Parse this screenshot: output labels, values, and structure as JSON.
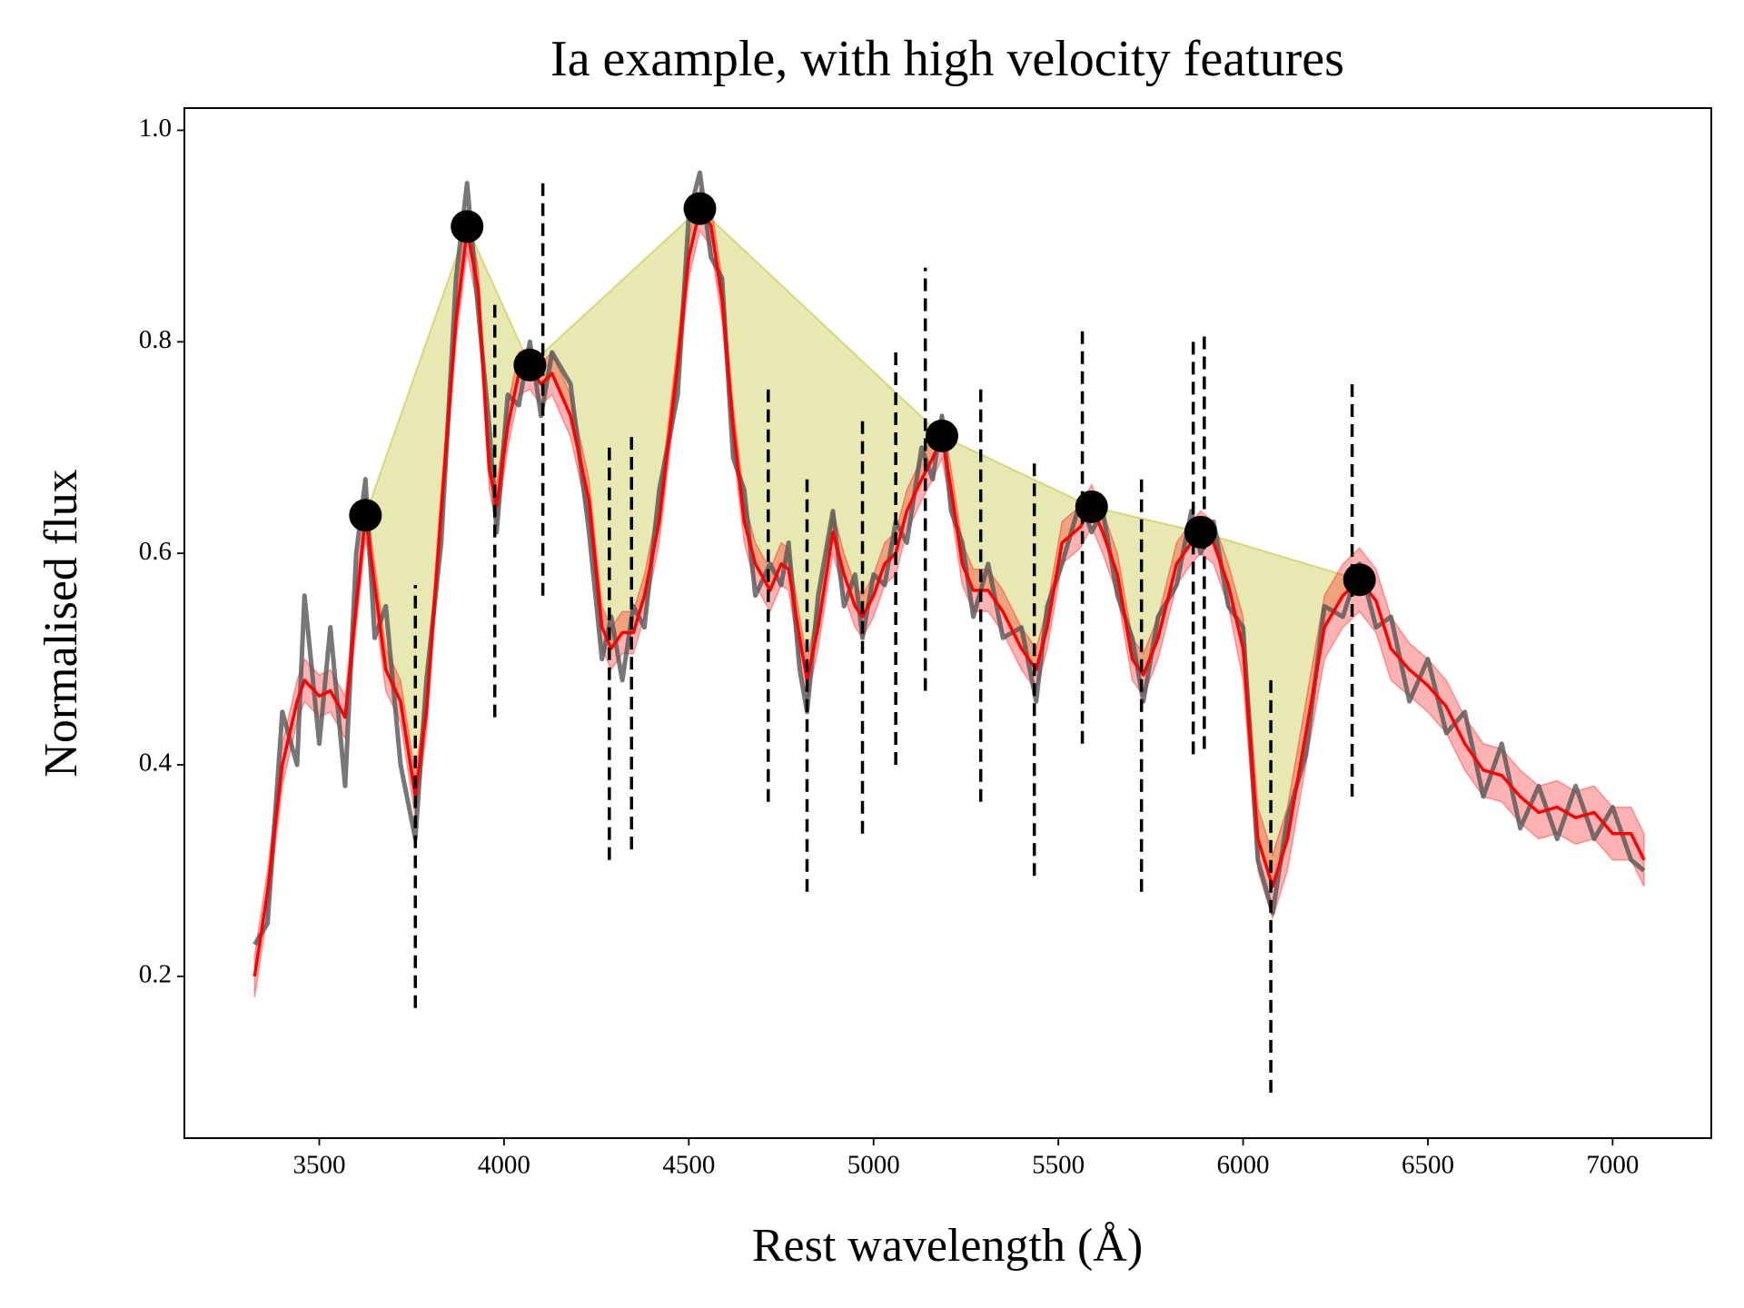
{
  "chart_data": {
    "type": "spectrum",
    "title": "Ia example, with high velocity features",
    "xlabel": "Rest wavelength (Å)",
    "ylabel": "Normalised flux",
    "xlim": [
      3135,
      7267
    ],
    "ylim": [
      0.047,
      1.021
    ],
    "xticks": [
      3500,
      4000,
      4500,
      5000,
      5500,
      6000,
      6500,
      7000
    ],
    "yticks": [
      0.2,
      0.4,
      0.6,
      0.8,
      {
        "value": 1,
        "label": "1.0"
      }
    ],
    "x": [
      3325,
      3360,
      3400,
      3440,
      3460,
      3500,
      3530,
      3570,
      3600,
      3625,
      3650,
      3680,
      3720,
      3760,
      3790,
      3830,
      3870,
      3900,
      3930,
      3960,
      3980,
      4010,
      4040,
      4070,
      4100,
      4130,
      4180,
      4230,
      4265,
      4290,
      4320,
      4350,
      4380,
      4420,
      4470,
      4500,
      4530,
      4560,
      4590,
      4620,
      4650,
      4680,
      4720,
      4750,
      4770,
      4800,
      4820,
      4850,
      4890,
      4920,
      4950,
      4970,
      5000,
      5030,
      5060,
      5090,
      5130,
      5160,
      5185,
      5210,
      5240,
      5270,
      5310,
      5350,
      5400,
      5440,
      5470,
      5510,
      5560,
      5590,
      5620,
      5660,
      5700,
      5730,
      5770,
      5820,
      5860,
      5885,
      5920,
      5960,
      6000,
      6040,
      6080,
      6120,
      6170,
      6220,
      6270,
      6315,
      6360,
      6400,
      6450,
      6500,
      6550,
      6600,
      6650,
      6700,
      6750,
      6800,
      6850,
      6900,
      6950,
      7000,
      7050,
      7085
    ],
    "series": [
      {
        "color": "#555555",
        "values": [
          0.23,
          0.25,
          0.45,
          0.4,
          0.56,
          0.42,
          0.53,
          0.38,
          0.6,
          0.67,
          0.52,
          0.55,
          0.4,
          0.33,
          0.48,
          0.61,
          0.86,
          0.95,
          0.83,
          0.72,
          0.62,
          0.75,
          0.74,
          0.8,
          0.73,
          0.79,
          0.76,
          0.62,
          0.5,
          0.54,
          0.48,
          0.55,
          0.53,
          0.66,
          0.75,
          0.92,
          0.96,
          0.88,
          0.86,
          0.69,
          0.66,
          0.56,
          0.59,
          0.57,
          0.61,
          0.49,
          0.45,
          0.56,
          0.64,
          0.55,
          0.58,
          0.52,
          0.58,
          0.57,
          0.63,
          0.61,
          0.7,
          0.67,
          0.73,
          0.64,
          0.61,
          0.54,
          0.59,
          0.52,
          0.53,
          0.46,
          0.55,
          0.59,
          0.65,
          0.62,
          0.64,
          0.56,
          0.52,
          0.46,
          0.54,
          0.57,
          0.64,
          0.6,
          0.63,
          0.55,
          0.53,
          0.31,
          0.26,
          0.35,
          0.41,
          0.55,
          0.54,
          0.59,
          0.53,
          0.54,
          0.46,
          0.5,
          0.43,
          0.45,
          0.37,
          0.42,
          0.34,
          0.38,
          0.33,
          0.38,
          0.33,
          0.36,
          0.31,
          0.3
        ]
      },
      {
        "color": "#ff0000",
        "values": [
          0.2,
          0.28,
          0.4,
          0.46,
          0.48,
          0.465,
          0.47,
          0.445,
          0.55,
          0.635,
          0.57,
          0.49,
          0.46,
          0.37,
          0.45,
          0.64,
          0.82,
          0.905,
          0.85,
          0.68,
          0.645,
          0.72,
          0.77,
          0.775,
          0.76,
          0.77,
          0.73,
          0.65,
          0.53,
          0.51,
          0.525,
          0.525,
          0.56,
          0.63,
          0.78,
          0.88,
          0.925,
          0.91,
          0.84,
          0.72,
          0.63,
          0.59,
          0.565,
          0.59,
          0.585,
          0.52,
          0.48,
          0.53,
          0.62,
          0.58,
          0.55,
          0.54,
          0.56,
          0.59,
          0.6,
          0.64,
          0.67,
          0.69,
          0.71,
          0.66,
          0.59,
          0.565,
          0.565,
          0.545,
          0.51,
          0.49,
          0.53,
          0.61,
          0.625,
          0.645,
          0.62,
          0.58,
          0.5,
          0.485,
          0.52,
          0.59,
          0.61,
          0.62,
          0.61,
          0.57,
          0.51,
          0.33,
          0.285,
          0.33,
          0.43,
          0.53,
          0.56,
          0.575,
          0.555,
          0.51,
          0.49,
          0.475,
          0.455,
          0.42,
          0.395,
          0.39,
          0.37,
          0.355,
          0.36,
          0.35,
          0.355,
          0.335,
          0.335,
          0.31
        ],
        "errors": [
          0.02,
          0.02,
          0.02,
          0.02,
          0.02,
          0.02,
          0.02,
          0.02,
          0.02,
          0.02,
          0.02,
          0.02,
          0.02,
          0.02,
          0.02,
          0.02,
          0.02,
          0.02,
          0.02,
          0.02,
          0.02,
          0.02,
          0.02,
          0.02,
          0.02,
          0.02,
          0.02,
          0.02,
          0.02,
          0.02,
          0.02,
          0.02,
          0.02,
          0.02,
          0.02,
          0.02,
          0.02,
          0.02,
          0.02,
          0.02,
          0.02,
          0.02,
          0.02,
          0.02,
          0.02,
          0.02,
          0.02,
          0.02,
          0.02,
          0.02,
          0.02,
          0.02,
          0.02,
          0.02,
          0.02,
          0.02,
          0.02,
          0.02,
          0.02,
          0.02,
          0.02,
          0.02,
          0.02,
          0.02,
          0.02,
          0.02,
          0.02,
          0.02,
          0.02,
          0.02,
          0.02,
          0.02,
          0.02,
          0.02,
          0.02,
          0.02,
          0.02,
          0.02,
          0.02,
          0.02,
          0.03,
          0.03,
          0.03,
          0.03,
          0.03,
          0.03,
          0.03,
          0.03,
          0.03,
          0.03,
          0.025,
          0.025,
          0.025,
          0.025,
          0.025,
          0.025,
          0.025,
          0.025,
          0.025,
          0.025,
          0.025,
          0.025,
          0.025,
          0.025
        ]
      }
    ],
    "fill_color": "#bcbd22",
    "peaks": {
      "color": "#000000",
      "x": [
        3625,
        3900,
        4070,
        4530,
        5185,
        5590,
        5885,
        6315
      ],
      "y": [
        0.636,
        0.909,
        0.778,
        0.926,
        0.711,
        0.644,
        0.62,
        0.575
      ]
    },
    "markers": {
      "color": "#000000",
      "x": [
        3760,
        3975,
        4105,
        4285,
        4345,
        4715,
        4820,
        4970,
        5060,
        5140,
        5290,
        5435,
        5565,
        5725,
        5865,
        5895,
        6075,
        6295
      ],
      "ymin": [
        0.17,
        0.445,
        0.56,
        0.31,
        0.32,
        0.365,
        0.28,
        0.335,
        0.4,
        0.47,
        0.365,
        0.295,
        0.42,
        0.28,
        0.41,
        0.415,
        0.09,
        0.37
      ],
      "ymax": [
        0.57,
        0.84,
        0.955,
        0.705,
        0.715,
        0.76,
        0.675,
        0.73,
        0.795,
        0.87,
        0.76,
        0.69,
        0.815,
        0.675,
        0.8,
        0.81,
        0.485,
        0.765
      ]
    }
  }
}
